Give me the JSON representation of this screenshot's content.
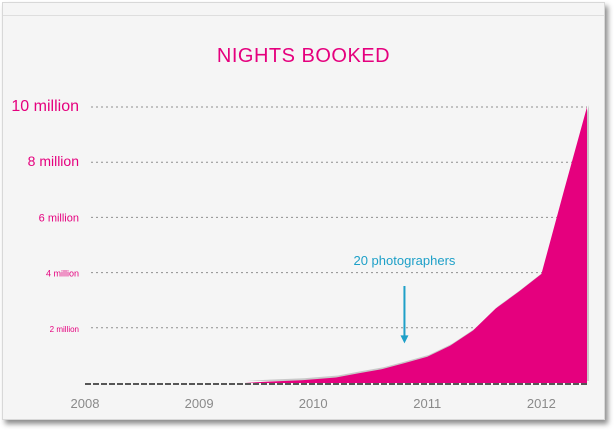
{
  "chart_data": {
    "type": "area",
    "title": "NIGHTS BOOKED",
    "xlabel": "",
    "ylabel": "",
    "x_ticks": [
      "2008",
      "2009",
      "2010",
      "2011",
      "2012"
    ],
    "xlim": [
      2008,
      2012.4
    ],
    "ylim": [
      0,
      10000000
    ],
    "y_ticks": [
      {
        "value": 2000000,
        "label": "2 million"
      },
      {
        "value": 4000000,
        "label": "4 million"
      },
      {
        "value": 6000000,
        "label": "6 million"
      },
      {
        "value": 8000000,
        "label": "8 million"
      },
      {
        "value": 10000000,
        "label": "10 million"
      }
    ],
    "grid": true,
    "legend": "none",
    "fill_color": "#e5007e",
    "series": [
      {
        "x": [
          2008.0,
          2009.4,
          2009.6,
          2009.9,
          2010.2,
          2010.4,
          2010.6,
          2010.8,
          2011.0,
          2011.2,
          2011.4,
          2011.6,
          2011.8,
          2012.0,
          2012.2,
          2012.4
        ],
        "values": [
          0,
          0,
          50000,
          100000,
          200000,
          350000,
          500000,
          720000,
          950000,
          1350000,
          1900000,
          2700000,
          3300000,
          3950000,
          7000000,
          10000000
        ]
      }
    ],
    "annotations": [
      {
        "text": "20 photographers",
        "x": 2010.8,
        "y": 1000000
      }
    ]
  }
}
